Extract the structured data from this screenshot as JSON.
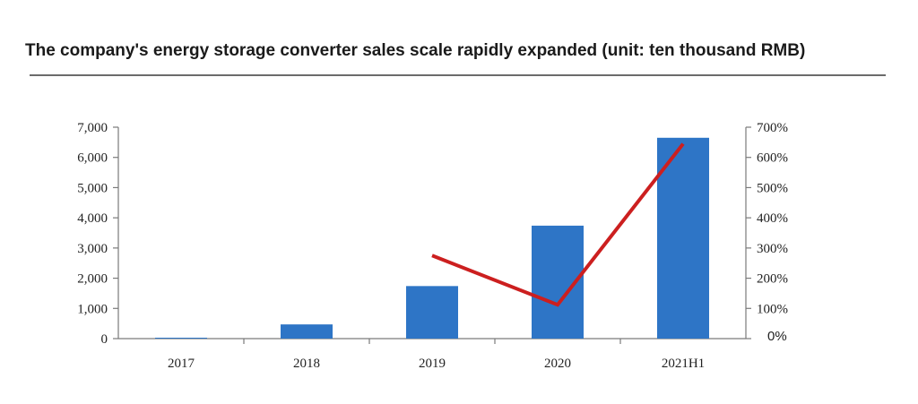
{
  "chart_data": {
    "type": "bar",
    "title": "The company's energy storage converter sales scale rapidly expanded (unit: ten thousand RMB)",
    "categories": [
      "2017",
      "2018",
      "2019",
      "2020",
      "2021H1"
    ],
    "series": [
      {
        "type": "bar",
        "axis": "left",
        "values": [
          30,
          470,
          1740,
          3740,
          6650
        ],
        "color": "#2e75c6"
      },
      {
        "type": "line",
        "axis": "right",
        "values": [
          null,
          null,
          275,
          112,
          645
        ],
        "color": "#cc1f1f"
      }
    ],
    "y_left": {
      "min": 0,
      "max": 7000,
      "ticks": [
        "0",
        "1,000",
        "2,000",
        "3,000",
        "4,000",
        "5,000",
        "6,000",
        "7,000"
      ]
    },
    "y_right": {
      "min": 0,
      "max": 700,
      "ticks": [
        "0%",
        "100%",
        "200%",
        "300%",
        "400%",
        "500%",
        "600%",
        "700%"
      ]
    },
    "grid": false,
    "legend": "none"
  }
}
